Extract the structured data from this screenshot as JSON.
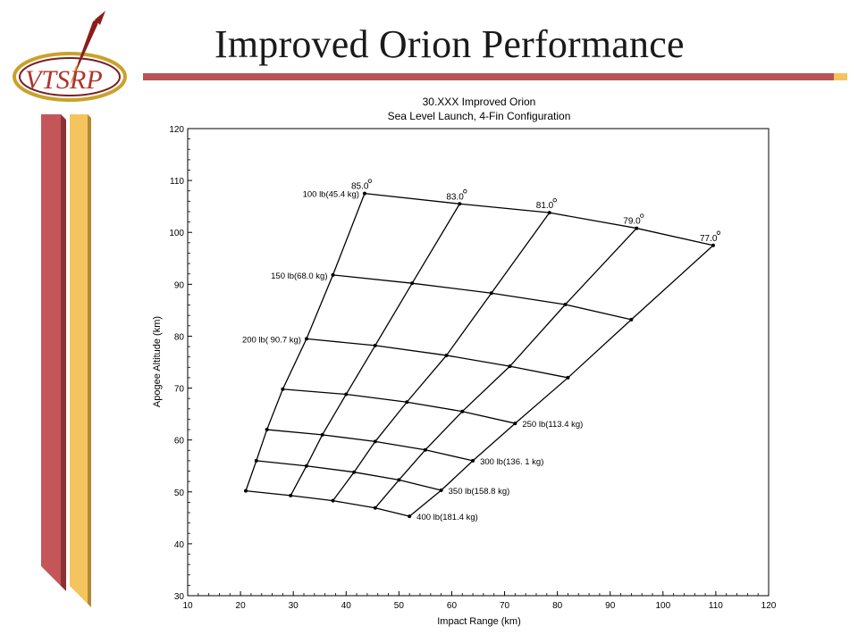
{
  "slide": {
    "title": "Improved Orion Performance",
    "logo_text": "VTSRP",
    "colors": {
      "accent_red": "#b85456",
      "accent_gold": "#f4c45e"
    }
  },
  "chart_data": {
    "type": "line",
    "title": "30.XXX Improved Orion",
    "subtitle": "Sea Level Launch, 4-Fin Configuration",
    "xlabel": "Impact Range (km)",
    "ylabel": "Apogee Altitude (km)",
    "xlim": [
      10,
      120
    ],
    "ylim": [
      30,
      120
    ],
    "xticks": [
      10,
      20,
      30,
      40,
      50,
      60,
      70,
      80,
      90,
      100,
      110,
      120
    ],
    "yticks": [
      30,
      40,
      50,
      60,
      70,
      80,
      90,
      100,
      110,
      120
    ],
    "grid": false,
    "legend": "none",
    "payload_series": [
      {
        "name": "100 lb(45.4 kg)",
        "x": [
          43.5,
          61.5,
          78.5,
          95,
          109.5
        ],
        "y": [
          107.5,
          105.5,
          103.8,
          100.8,
          97.5
        ]
      },
      {
        "name": "150 lb(68.0 kg)",
        "x": [
          37.5,
          52.5,
          67.5,
          81.5,
          94
        ],
        "y": [
          91.8,
          90.2,
          88.3,
          86.1,
          83.2
        ]
      },
      {
        "name": "200 lb( 90.7 kg)",
        "x": [
          32.5,
          45.5,
          59,
          71,
          82
        ],
        "y": [
          79.5,
          78.2,
          76.3,
          74.2,
          72
        ]
      },
      {
        "name": "",
        "x": [
          28,
          40,
          51.5,
          62,
          72
        ],
        "y": [
          69.8,
          68.8,
          67.3,
          65.5,
          63.2
        ]
      },
      {
        "name": "",
        "x": [
          25,
          35.5,
          45.5,
          55,
          64
        ],
        "y": [
          62,
          61,
          59.7,
          58.1,
          56
        ]
      },
      {
        "name": "",
        "x": [
          23,
          32.5,
          41.5,
          50,
          58
        ],
        "y": [
          56,
          55,
          53.8,
          52.3,
          50.3
        ]
      },
      {
        "name": "",
        "x": [
          21,
          29.5,
          37.5,
          45.5,
          52
        ],
        "y": [
          50.2,
          49.3,
          48.3,
          46.9,
          45.3
        ]
      }
    ],
    "angle_labels": [
      "85.0",
      "83.0",
      "81.0",
      "79.0",
      "77.0"
    ],
    "weight_labels_right": [
      "250 lb(113.4 kg)",
      "300 lb(136. 1 kg)",
      "350 lb(158.8 kg)",
      "400 lb(181.4 kg)"
    ],
    "line_color": "#000000"
  }
}
